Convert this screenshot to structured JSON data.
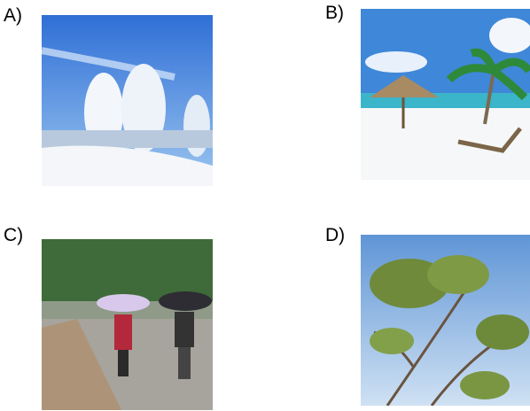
{
  "options": [
    {
      "label": "A)"
    },
    {
      "label": "B)"
    },
    {
      "label": "C)"
    },
    {
      "label": "D)"
    }
  ]
}
